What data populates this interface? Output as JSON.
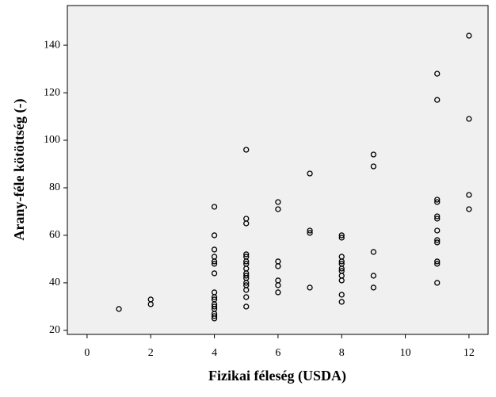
{
  "chart_data": {
    "type": "scatter",
    "x_label": "Fizikai féleség (USDA)",
    "y_label": "Arany-féle kötöttség (-)",
    "x": [
      1,
      2,
      2,
      4,
      4,
      4,
      4,
      4,
      4,
      4,
      4,
      4,
      4,
      4,
      4,
      4,
      4,
      4,
      4,
      5,
      5,
      5,
      5,
      5,
      5,
      5,
      5,
      5,
      5,
      5,
      5,
      5,
      5,
      5,
      5,
      6,
      6,
      6,
      6,
      6,
      6,
      6,
      7,
      7,
      7,
      7,
      8,
      8,
      8,
      8,
      8,
      8,
      8,
      8,
      8,
      8,
      8,
      9,
      9,
      9,
      9,
      9,
      11,
      11,
      11,
      11,
      11,
      11,
      11,
      11,
      11,
      11,
      11,
      11,
      12,
      12,
      12,
      12
    ],
    "y": [
      29,
      33,
      31,
      72,
      60,
      54,
      51,
      49,
      48,
      44,
      36,
      34,
      33,
      31,
      30,
      29,
      27,
      26,
      25,
      96,
      67,
      65,
      52,
      51,
      49,
      48,
      46,
      44,
      43,
      42,
      40,
      39,
      37,
      34,
      30,
      74,
      71,
      49,
      47,
      41,
      39,
      36,
      86,
      62,
      61,
      38,
      60,
      59,
      51,
      49,
      48,
      46,
      45,
      43,
      41,
      35,
      32,
      94,
      89,
      53,
      43,
      38,
      128,
      117,
      75,
      74,
      68,
      67,
      62,
      58,
      57,
      49,
      48,
      40,
      144,
      109,
      77,
      71
    ],
    "xlim": [
      -0.62,
      12.6
    ],
    "ylim": [
      18.3,
      156.7
    ],
    "xticks": [
      0,
      2,
      4,
      6,
      8,
      10,
      12
    ],
    "yticks": [
      20,
      40,
      60,
      80,
      100,
      120,
      140
    ],
    "marker_color": "#000000",
    "plot_background": "#f0f0f0"
  }
}
